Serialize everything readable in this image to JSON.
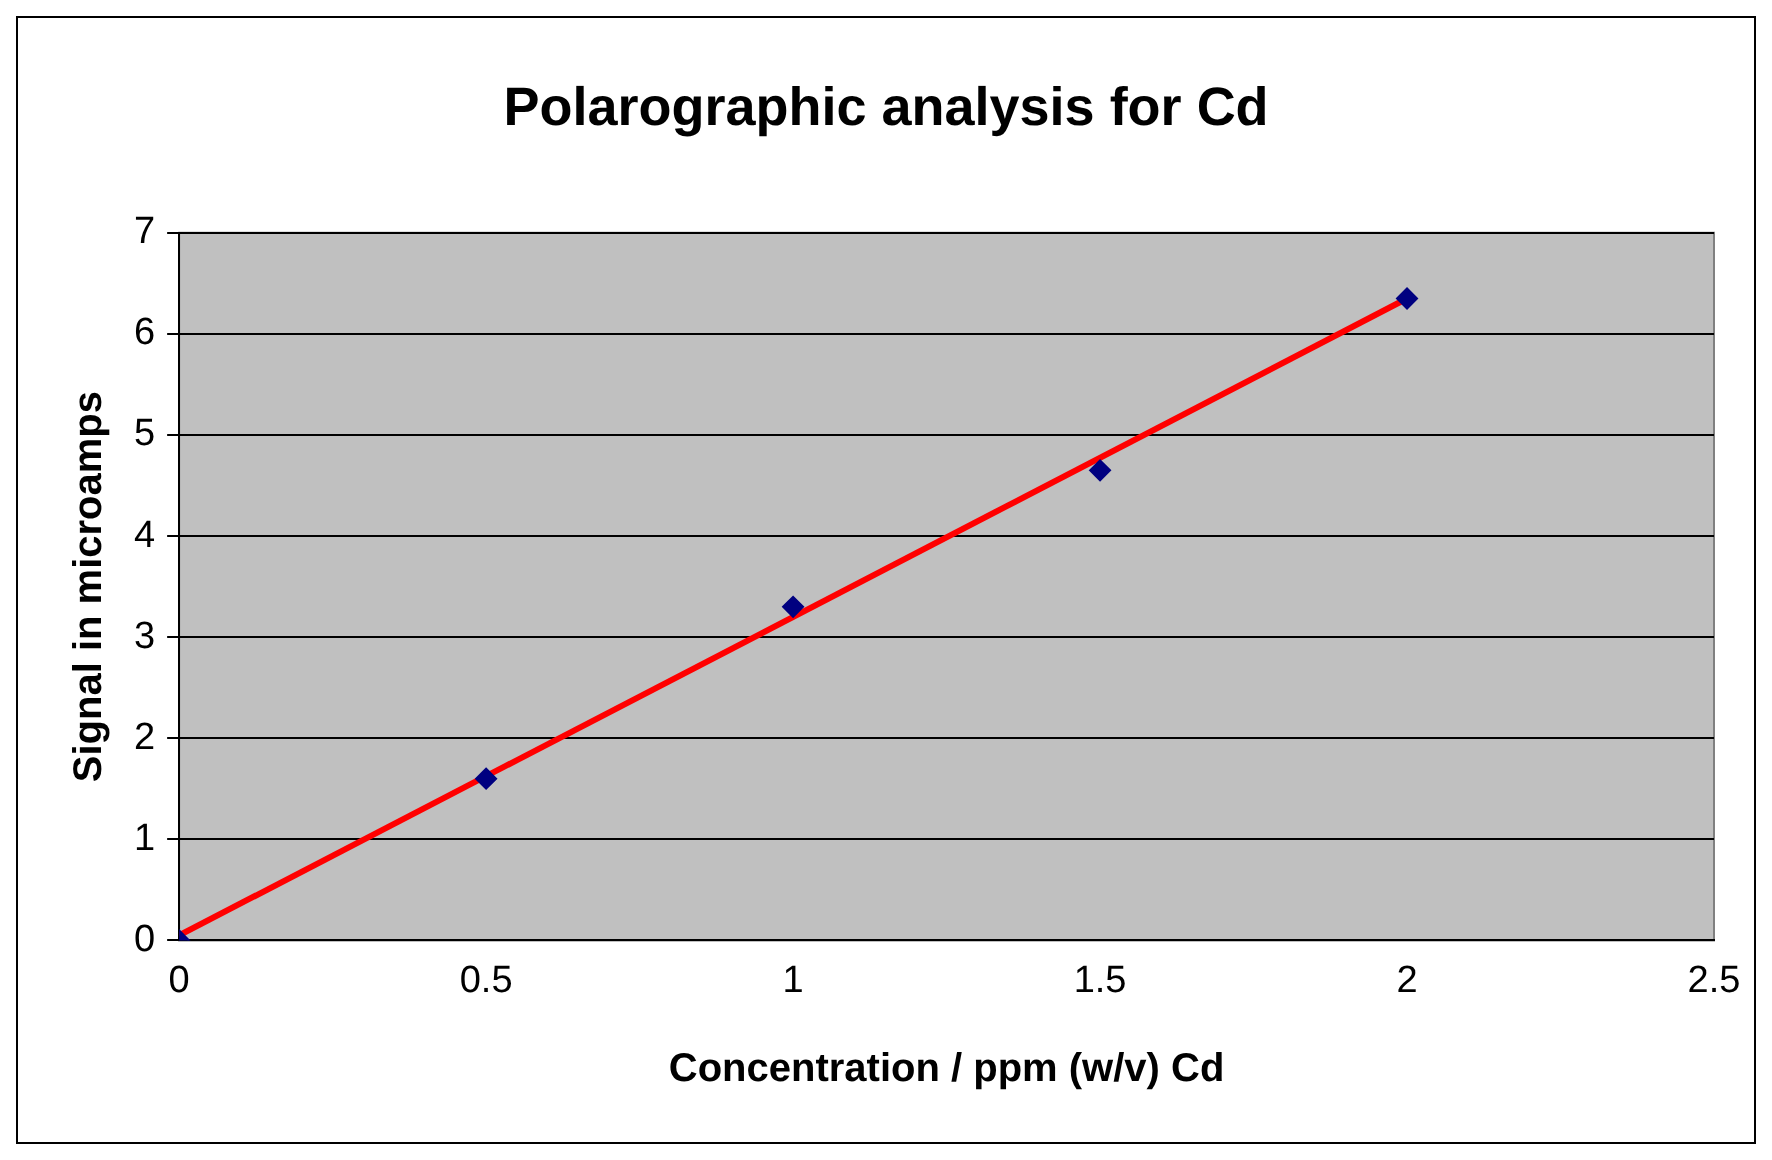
{
  "chart_data": {
    "type": "scatter",
    "title": "Polarographic analysis for Cd",
    "xlabel": "Concentration / ppm (w/v) Cd",
    "ylabel": "Signal in microamps",
    "x": [
      0,
      0.5,
      1,
      1.5,
      2
    ],
    "series": [
      {
        "color": "#000080",
        "values": [
          0,
          1.6,
          3.3,
          4.65,
          6.35
        ],
        "marker": "diamond"
      },
      {
        "type": "line",
        "color": "#ff0000",
        "x": [
          0,
          2
        ],
        "values": [
          0.05,
          6.35
        ],
        "marker": "none",
        "line_style": "solid"
      }
    ],
    "xlim": [
      0,
      2.5
    ],
    "xticks": [
      0,
      0.5,
      1,
      1.5,
      2,
      2.5
    ],
    "ylim": [
      0,
      7
    ],
    "yticks": [
      0,
      1,
      2,
      3,
      4,
      5,
      6,
      7
    ],
    "grid": "y",
    "legend": false
  }
}
